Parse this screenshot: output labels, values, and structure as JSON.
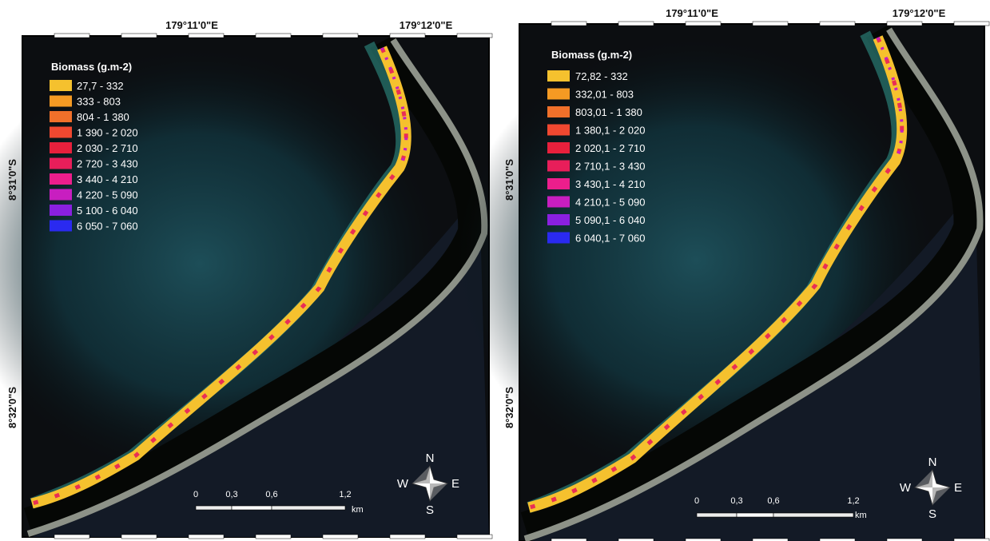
{
  "maps": [
    {
      "top_labels": [
        "179°11'0\"E",
        "179°12'0\"E"
      ],
      "side_labels": [
        "8°31'0\"S",
        "8°32'0\"S"
      ],
      "legend": {
        "title": "Biomass (g.m-2)",
        "items": [
          {
            "label": "27,7 - 332",
            "color": "#f5c12e"
          },
          {
            "label": "333 - 803",
            "color": "#f59a23"
          },
          {
            "label": "804 - 1 380",
            "color": "#f0702a"
          },
          {
            "label": "1 390 - 2 020",
            "color": "#f04830"
          },
          {
            "label": "2 030 - 2 710",
            "color": "#e8203c"
          },
          {
            "label": "2 720 - 3 430",
            "color": "#e81e5a"
          },
          {
            "label": "3 440 - 4 210",
            "color": "#ec1e8c"
          },
          {
            "label": "4 220 - 5 090",
            "color": "#c81ec0"
          },
          {
            "label": "5 100 - 6 040",
            "color": "#8a20e0"
          },
          {
            "label": "6 050 - 7 060",
            "color": "#2a2af0"
          }
        ]
      },
      "scale_labels": [
        "0",
        "0,3",
        "0,6",
        "1,2"
      ],
      "scale_unit": "km",
      "compass": [
        "N",
        "E",
        "S",
        "W"
      ]
    },
    {
      "top_labels": [
        "179°11'0\"E",
        "179°12'0\"E"
      ],
      "side_labels": [
        "8°31'0\"S",
        "8°32'0\"S"
      ],
      "legend": {
        "title": "Biomass (g.m-2)",
        "items": [
          {
            "label": "72,82 - 332",
            "color": "#f5c12e"
          },
          {
            "label": "332,01 - 803",
            "color": "#f59a23"
          },
          {
            "label": "803,01 - 1 380",
            "color": "#f0702a"
          },
          {
            "label": "1 380,1 - 2 020",
            "color": "#f04830"
          },
          {
            "label": "2 020,1 - 2 710",
            "color": "#e8203c"
          },
          {
            "label": "2 710,1 - 3 430",
            "color": "#e81e5a"
          },
          {
            "label": "3 430,1 - 4 210",
            "color": "#ec1e8c"
          },
          {
            "label": "4 210,1 - 5 090",
            "color": "#c81ec0"
          },
          {
            "label": "5 090,1 - 6 040",
            "color": "#8a20e0"
          },
          {
            "label": "6 040,1 - 7 060",
            "color": "#2a2af0"
          }
        ]
      },
      "scale_labels": [
        "0",
        "0,3",
        "0,6",
        "1,2"
      ],
      "scale_unit": "km",
      "compass": [
        "N",
        "E",
        "S",
        "W"
      ]
    }
  ]
}
